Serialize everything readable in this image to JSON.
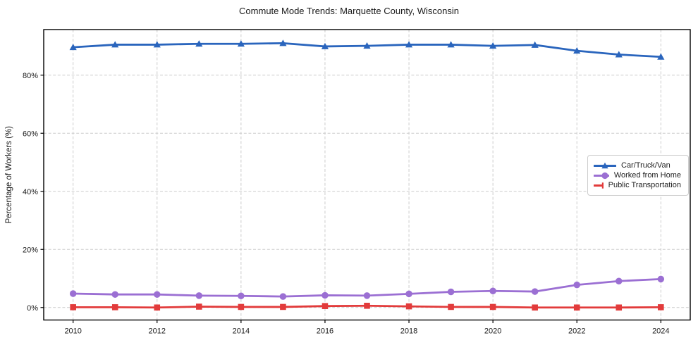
{
  "chart_data": {
    "type": "line",
    "title": "Commute Mode Trends: Marquette County, Wisconsin",
    "xlabel": "",
    "ylabel": "Percentage of Workers (%)",
    "x": [
      2010,
      2011,
      2012,
      2013,
      2014,
      2015,
      2016,
      2017,
      2018,
      2019,
      2020,
      2021,
      2022,
      2023,
      2024
    ],
    "series": [
      {
        "name": "Car/Truck/Van",
        "color": "#2a65bd",
        "marker": "triangle-up",
        "values": [
          89.6,
          90.5,
          90.5,
          90.8,
          90.8,
          91.0,
          89.9,
          90.1,
          90.5,
          90.5,
          90.1,
          90.4,
          88.4,
          87.1,
          86.3
        ]
      },
      {
        "name": "Worked from Home",
        "color": "#9b6fd3",
        "marker": "circle",
        "values": [
          4.8,
          4.5,
          4.5,
          4.1,
          4.0,
          3.8,
          4.2,
          4.1,
          4.7,
          5.4,
          5.7,
          5.5,
          7.8,
          9.1,
          9.8
        ]
      },
      {
        "name": "Public Transportation",
        "color": "#e23b3b",
        "marker": "square",
        "values": [
          0.1,
          0.1,
          0.0,
          0.3,
          0.2,
          0.2,
          0.5,
          0.6,
          0.4,
          0.2,
          0.2,
          0.0,
          0.0,
          0.0,
          0.1
        ]
      }
    ],
    "xticks": {
      "values": [
        2010,
        2012,
        2014,
        2016,
        2018,
        2020,
        2022,
        2024
      ],
      "labels": [
        "2010",
        "2012",
        "2014",
        "2016",
        "2018",
        "2020",
        "2022",
        "2024"
      ]
    },
    "yticks": {
      "values": [
        0,
        20,
        40,
        60,
        80
      ],
      "labels": [
        "0%",
        "20%",
        "40%",
        "60%",
        "80%"
      ]
    },
    "xlim": [
      2009.3,
      2024.7
    ],
    "ylim": [
      -4.3,
      95.7
    ],
    "grid": true,
    "grid_style": "dashed",
    "legend_position": "center-right"
  },
  "colors": {
    "grid": "#cccccc",
    "spine": "#000000",
    "tick_text": "#1a1a1a",
    "background": "#ffffff"
  }
}
